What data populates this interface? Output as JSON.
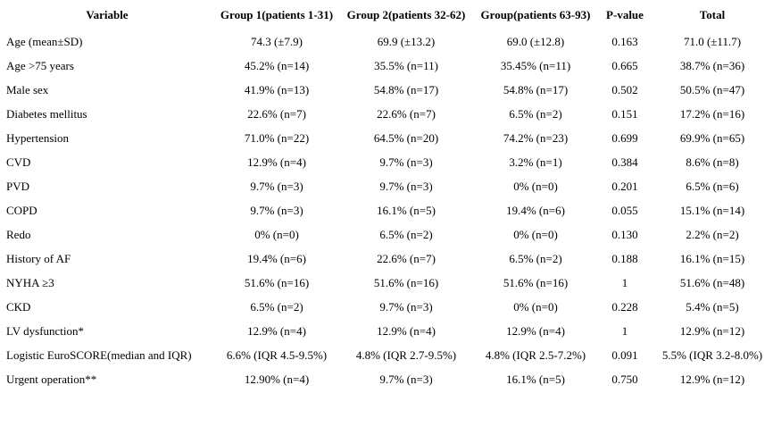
{
  "table": {
    "headers": [
      "Variable",
      "Group 1(patients 1-31)",
      "Group 2(patients 32-62)",
      "Group(patients 63-93)",
      "P-value",
      "Total"
    ],
    "rows": [
      [
        "Age (mean±SD)",
        "74.3 (±7.9)",
        "69.9 (±13.2)",
        "69.0 (±12.8)",
        "0.163",
        "71.0 (±11.7)"
      ],
      [
        "Age >75 years",
        "45.2% (n=14)",
        "35.5% (n=11)",
        "35.45% (n=11)",
        "0.665",
        "38.7% (n=36)"
      ],
      [
        "Male sex",
        "41.9% (n=13)",
        "54.8% (n=17)",
        "54.8% (n=17)",
        "0.502",
        "50.5% (n=47)"
      ],
      [
        "Diabetes mellitus",
        "22.6% (n=7)",
        "22.6% (n=7)",
        "6.5% (n=2)",
        "0.151",
        "17.2% (n=16)"
      ],
      [
        "Hypertension",
        "71.0% (n=22)",
        "64.5% (n=20)",
        "74.2% (n=23)",
        "0.699",
        "69.9% (n=65)"
      ],
      [
        "CVD",
        "12.9% (n=4)",
        "9.7% (n=3)",
        "3.2% (n=1)",
        "0.384",
        "8.6% (n=8)"
      ],
      [
        "PVD",
        "9.7% (n=3)",
        "9.7% (n=3)",
        "0% (n=0)",
        "0.201",
        "6.5% (n=6)"
      ],
      [
        "COPD",
        "9.7% (n=3)",
        "16.1% (n=5)",
        "19.4% (n=6)",
        "0.055",
        "15.1% (n=14)"
      ],
      [
        "Redo",
        "0% (n=0)",
        "6.5% (n=2)",
        "0% (n=0)",
        "0.130",
        "2.2% (n=2)"
      ],
      [
        "History of AF",
        "19.4% (n=6)",
        "22.6% (n=7)",
        "6.5% (n=2)",
        "0.188",
        "16.1% (n=15)"
      ],
      [
        "NYHA ≥3",
        "51.6% (n=16)",
        "51.6% (n=16)",
        "51.6% (n=16)",
        "1",
        "51.6% (n=48)"
      ],
      [
        "CKD",
        "6.5% (n=2)",
        "9.7% (n=3)",
        "0% (n=0)",
        "0.228",
        "5.4% (n=5)"
      ],
      [
        "LV dysfunction*",
        "12.9% (n=4)",
        "12.9% (n=4)",
        "12.9% (n=4)",
        "1",
        "12.9% (n=12)"
      ],
      [
        "Logistic EuroSCORE(median and IQR)",
        "6.6% (IQR 4.5-9.5%)",
        "4.8% (IQR 2.7-9.5%)",
        "4.8% (IQR 2.5-7.2%)",
        "0.091",
        "5.5% (IQR 3.2-8.0%)"
      ],
      [
        "Urgent operation**",
        "12.90% (n=4)",
        "9.7% (n=3)",
        "16.1% (n=5)",
        "0.750",
        "12.9% (n=12)"
      ]
    ]
  }
}
